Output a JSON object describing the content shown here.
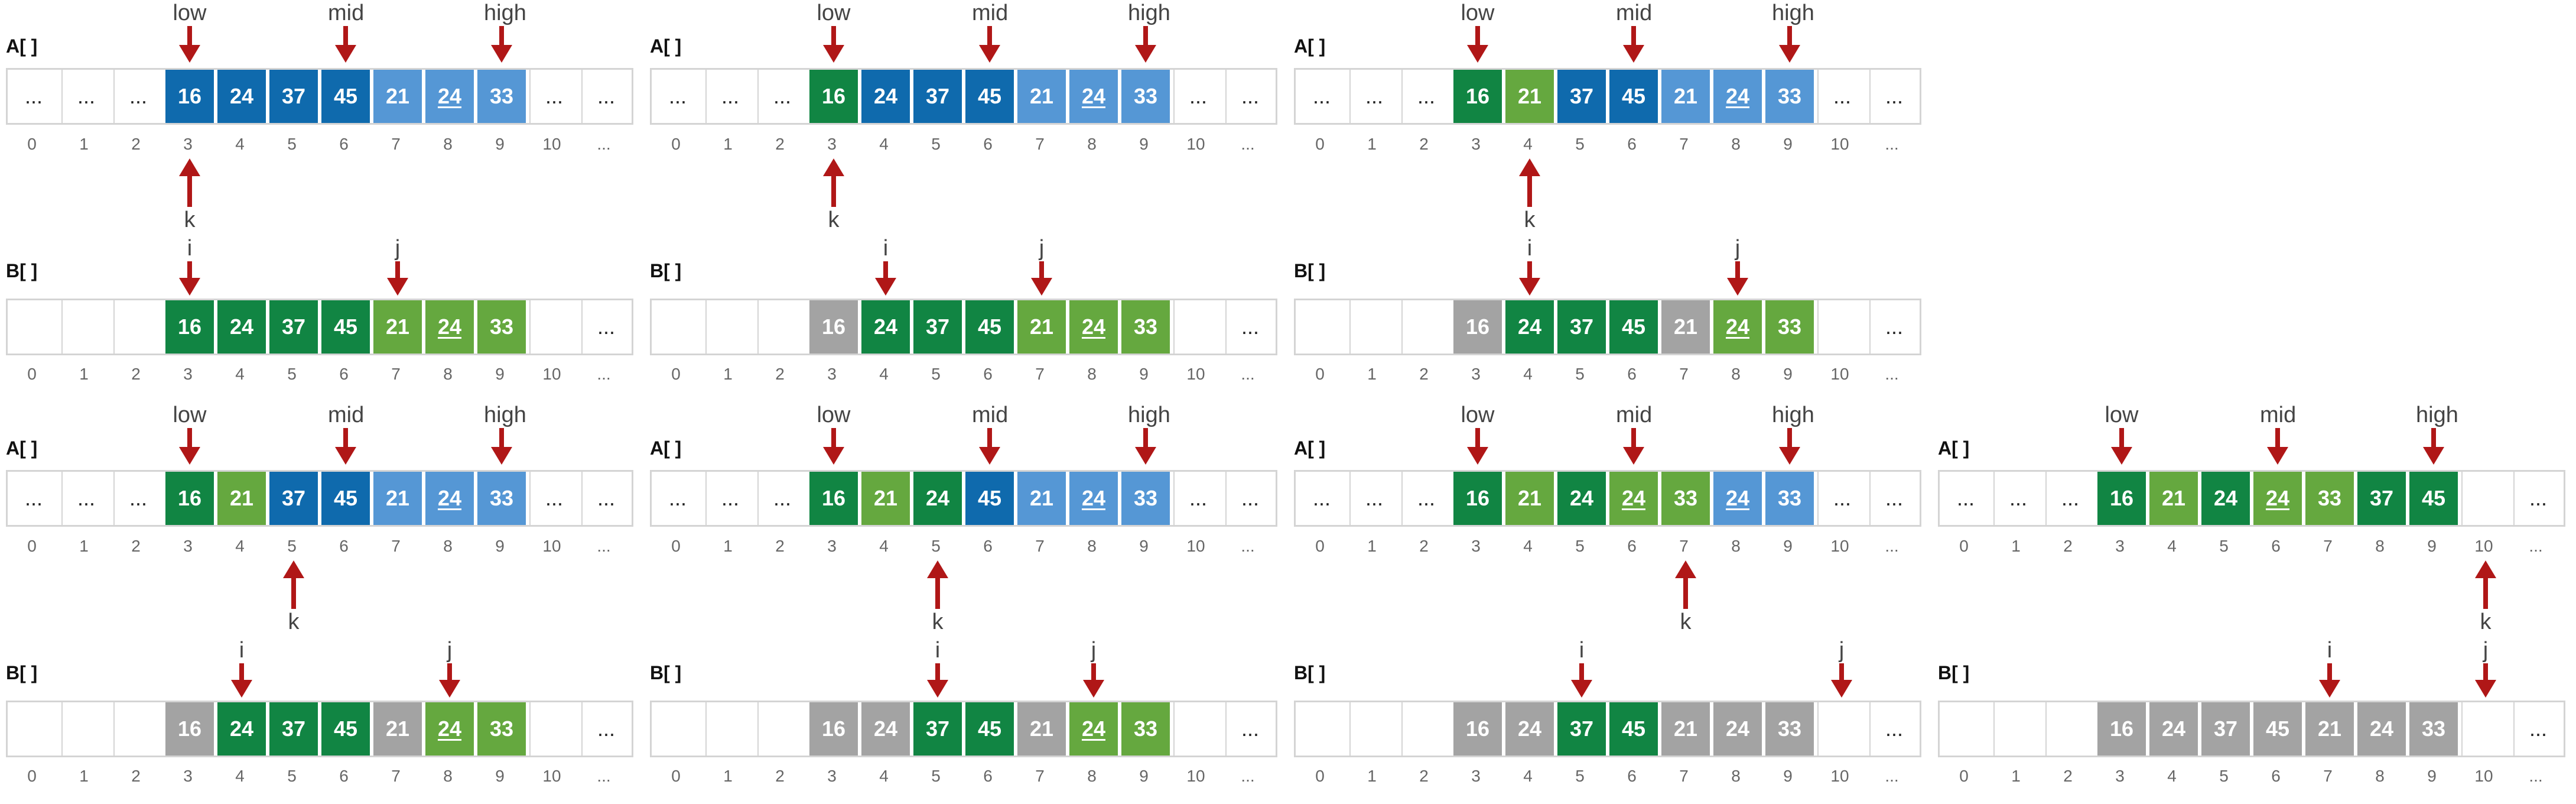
{
  "array_a_label": "A[ ]",
  "array_b_label": "B[ ]",
  "indices": [
    "0",
    "1",
    "2",
    "3",
    "4",
    "5",
    "6",
    "7",
    "8",
    "9",
    "10",
    "..."
  ],
  "panels": [
    {
      "a_cells": [
        {
          "v": "...",
          "c": "empty"
        },
        {
          "v": "...",
          "c": "empty"
        },
        {
          "v": "...",
          "c": "empty"
        },
        {
          "v": "16",
          "c": "dark"
        },
        {
          "v": "24",
          "c": "dark"
        },
        {
          "v": "37",
          "c": "dark"
        },
        {
          "v": "45",
          "c": "dark"
        },
        {
          "v": "21",
          "c": "light"
        },
        {
          "v": "24",
          "c": "light",
          "u": true
        },
        {
          "v": "33",
          "c": "light"
        },
        {
          "v": "...",
          "c": "empty"
        },
        {
          "v": "...",
          "c": "empty"
        }
      ],
      "b_cells": [
        {
          "v": "",
          "c": "empty"
        },
        {
          "v": "",
          "c": "empty"
        },
        {
          "v": "",
          "c": "empty"
        },
        {
          "v": "16",
          "c": "dgreen"
        },
        {
          "v": "24",
          "c": "dgreen"
        },
        {
          "v": "37",
          "c": "dgreen"
        },
        {
          "v": "45",
          "c": "dgreen"
        },
        {
          "v": "21",
          "c": "lgreen"
        },
        {
          "v": "24",
          "c": "lgreen",
          "u": true
        },
        {
          "v": "33",
          "c": "lgreen"
        },
        {
          "v": "",
          "c": "empty"
        },
        {
          "v": "...",
          "c": "empty"
        }
      ],
      "a_pointers": [
        {
          "label": "low",
          "index": 3
        },
        {
          "label": "mid",
          "index": 6
        },
        {
          "label": "high",
          "index": 9
        }
      ],
      "k_pointer": {
        "label": "k",
        "index": 3
      },
      "b_pointers": [
        {
          "label": "i",
          "index": 3
        },
        {
          "label": "j",
          "index": 7
        }
      ]
    },
    {
      "a_cells": [
        {
          "v": "...",
          "c": "empty"
        },
        {
          "v": "...",
          "c": "empty"
        },
        {
          "v": "...",
          "c": "empty"
        },
        {
          "v": "16",
          "c": "dgreen"
        },
        {
          "v": "24",
          "c": "dark"
        },
        {
          "v": "37",
          "c": "dark"
        },
        {
          "v": "45",
          "c": "dark"
        },
        {
          "v": "21",
          "c": "light"
        },
        {
          "v": "24",
          "c": "light",
          "u": true
        },
        {
          "v": "33",
          "c": "light"
        },
        {
          "v": "...",
          "c": "empty"
        },
        {
          "v": "...",
          "c": "empty"
        }
      ],
      "b_cells": [
        {
          "v": "",
          "c": "empty"
        },
        {
          "v": "",
          "c": "empty"
        },
        {
          "v": "",
          "c": "empty"
        },
        {
          "v": "16",
          "c": "gray"
        },
        {
          "v": "24",
          "c": "dgreen"
        },
        {
          "v": "37",
          "c": "dgreen"
        },
        {
          "v": "45",
          "c": "dgreen"
        },
        {
          "v": "21",
          "c": "lgreen"
        },
        {
          "v": "24",
          "c": "lgreen",
          "u": true
        },
        {
          "v": "33",
          "c": "lgreen"
        },
        {
          "v": "",
          "c": "empty"
        },
        {
          "v": "...",
          "c": "empty"
        }
      ],
      "a_pointers": [
        {
          "label": "low",
          "index": 3
        },
        {
          "label": "mid",
          "index": 6
        },
        {
          "label": "high",
          "index": 9
        }
      ],
      "k_pointer": {
        "label": "k",
        "index": 3
      },
      "b_pointers": [
        {
          "label": "i",
          "index": 4
        },
        {
          "label": "j",
          "index": 7
        }
      ]
    },
    {
      "a_cells": [
        {
          "v": "...",
          "c": "empty"
        },
        {
          "v": "...",
          "c": "empty"
        },
        {
          "v": "...",
          "c": "empty"
        },
        {
          "v": "16",
          "c": "dgreen"
        },
        {
          "v": "21",
          "c": "lgreen"
        },
        {
          "v": "37",
          "c": "dark"
        },
        {
          "v": "45",
          "c": "dark"
        },
        {
          "v": "21",
          "c": "light"
        },
        {
          "v": "24",
          "c": "light",
          "u": true
        },
        {
          "v": "33",
          "c": "light"
        },
        {
          "v": "...",
          "c": "empty"
        },
        {
          "v": "...",
          "c": "empty"
        }
      ],
      "b_cells": [
        {
          "v": "",
          "c": "empty"
        },
        {
          "v": "",
          "c": "empty"
        },
        {
          "v": "",
          "c": "empty"
        },
        {
          "v": "16",
          "c": "gray"
        },
        {
          "v": "24",
          "c": "dgreen"
        },
        {
          "v": "37",
          "c": "dgreen"
        },
        {
          "v": "45",
          "c": "dgreen"
        },
        {
          "v": "21",
          "c": "gray"
        },
        {
          "v": "24",
          "c": "lgreen",
          "u": true
        },
        {
          "v": "33",
          "c": "lgreen"
        },
        {
          "v": "",
          "c": "empty"
        },
        {
          "v": "...",
          "c": "empty"
        }
      ],
      "a_pointers": [
        {
          "label": "low",
          "index": 3
        },
        {
          "label": "mid",
          "index": 6
        },
        {
          "label": "high",
          "index": 9
        }
      ],
      "k_pointer": {
        "label": "k",
        "index": 4
      },
      "b_pointers": [
        {
          "label": "i",
          "index": 4
        },
        {
          "label": "j",
          "index": 8
        }
      ]
    },
    null,
    {
      "a_cells": [
        {
          "v": "...",
          "c": "empty"
        },
        {
          "v": "...",
          "c": "empty"
        },
        {
          "v": "...",
          "c": "empty"
        },
        {
          "v": "16",
          "c": "dgreen"
        },
        {
          "v": "21",
          "c": "lgreen"
        },
        {
          "v": "37",
          "c": "dark"
        },
        {
          "v": "45",
          "c": "dark"
        },
        {
          "v": "21",
          "c": "light"
        },
        {
          "v": "24",
          "c": "light",
          "u": true
        },
        {
          "v": "33",
          "c": "light"
        },
        {
          "v": "...",
          "c": "empty"
        },
        {
          "v": "...",
          "c": "empty"
        }
      ],
      "b_cells": [
        {
          "v": "",
          "c": "empty"
        },
        {
          "v": "",
          "c": "empty"
        },
        {
          "v": "",
          "c": "empty"
        },
        {
          "v": "16",
          "c": "gray"
        },
        {
          "v": "24",
          "c": "dgreen"
        },
        {
          "v": "37",
          "c": "dgreen"
        },
        {
          "v": "45",
          "c": "dgreen"
        },
        {
          "v": "21",
          "c": "gray"
        },
        {
          "v": "24",
          "c": "lgreen",
          "u": true
        },
        {
          "v": "33",
          "c": "lgreen"
        },
        {
          "v": "",
          "c": "empty"
        },
        {
          "v": "...",
          "c": "empty"
        }
      ],
      "a_pointers": [
        {
          "label": "low",
          "index": 3
        },
        {
          "label": "mid",
          "index": 6
        },
        {
          "label": "high",
          "index": 9
        }
      ],
      "k_pointer": {
        "label": "k",
        "index": 5
      },
      "b_pointers": [
        {
          "label": "i",
          "index": 4
        },
        {
          "label": "j",
          "index": 8
        }
      ]
    },
    {
      "a_cells": [
        {
          "v": "...",
          "c": "empty"
        },
        {
          "v": "...",
          "c": "empty"
        },
        {
          "v": "...",
          "c": "empty"
        },
        {
          "v": "16",
          "c": "dgreen"
        },
        {
          "v": "21",
          "c": "lgreen"
        },
        {
          "v": "24",
          "c": "dgreen"
        },
        {
          "v": "45",
          "c": "dark"
        },
        {
          "v": "21",
          "c": "light"
        },
        {
          "v": "24",
          "c": "light",
          "u": true
        },
        {
          "v": "33",
          "c": "light"
        },
        {
          "v": "...",
          "c": "empty"
        },
        {
          "v": "...",
          "c": "empty"
        }
      ],
      "b_cells": [
        {
          "v": "",
          "c": "empty"
        },
        {
          "v": "",
          "c": "empty"
        },
        {
          "v": "",
          "c": "empty"
        },
        {
          "v": "16",
          "c": "gray"
        },
        {
          "v": "24",
          "c": "gray"
        },
        {
          "v": "37",
          "c": "dgreen"
        },
        {
          "v": "45",
          "c": "dgreen"
        },
        {
          "v": "21",
          "c": "gray"
        },
        {
          "v": "24",
          "c": "lgreen",
          "u": true
        },
        {
          "v": "33",
          "c": "lgreen"
        },
        {
          "v": "",
          "c": "empty"
        },
        {
          "v": "...",
          "c": "empty"
        }
      ],
      "a_pointers": [
        {
          "label": "low",
          "index": 3
        },
        {
          "label": "mid",
          "index": 6
        },
        {
          "label": "high",
          "index": 9
        }
      ],
      "k_pointer": {
        "label": "k",
        "index": 5
      },
      "b_pointers": [
        {
          "label": "i",
          "index": 5
        },
        {
          "label": "j",
          "index": 8
        }
      ]
    },
    {
      "a_cells": [
        {
          "v": "...",
          "c": "empty"
        },
        {
          "v": "...",
          "c": "empty"
        },
        {
          "v": "...",
          "c": "empty"
        },
        {
          "v": "16",
          "c": "dgreen"
        },
        {
          "v": "21",
          "c": "lgreen"
        },
        {
          "v": "24",
          "c": "dgreen"
        },
        {
          "v": "24",
          "c": "lgreen",
          "u": true
        },
        {
          "v": "33",
          "c": "lgreen"
        },
        {
          "v": "24",
          "c": "light",
          "u": true
        },
        {
          "v": "33",
          "c": "light"
        },
        {
          "v": "...",
          "c": "empty"
        },
        {
          "v": "...",
          "c": "empty"
        }
      ],
      "b_cells": [
        {
          "v": "",
          "c": "empty"
        },
        {
          "v": "",
          "c": "empty"
        },
        {
          "v": "",
          "c": "empty"
        },
        {
          "v": "16",
          "c": "gray"
        },
        {
          "v": "24",
          "c": "gray"
        },
        {
          "v": "37",
          "c": "dgreen"
        },
        {
          "v": "45",
          "c": "dgreen"
        },
        {
          "v": "21",
          "c": "gray"
        },
        {
          "v": "24",
          "c": "gray"
        },
        {
          "v": "33",
          "c": "gray"
        },
        {
          "v": "",
          "c": "empty"
        },
        {
          "v": "...",
          "c": "empty"
        }
      ],
      "a_pointers": [
        {
          "label": "low",
          "index": 3
        },
        {
          "label": "mid",
          "index": 6
        },
        {
          "label": "high",
          "index": 9
        }
      ],
      "k_pointer": {
        "label": "k",
        "index": 7
      },
      "b_pointers": [
        {
          "label": "i",
          "index": 5
        },
        {
          "label": "j",
          "index": 10
        }
      ]
    },
    {
      "a_cells": [
        {
          "v": "...",
          "c": "empty"
        },
        {
          "v": "...",
          "c": "empty"
        },
        {
          "v": "...",
          "c": "empty"
        },
        {
          "v": "16",
          "c": "dgreen"
        },
        {
          "v": "21",
          "c": "lgreen"
        },
        {
          "v": "24",
          "c": "dgreen"
        },
        {
          "v": "24",
          "c": "lgreen",
          "u": true
        },
        {
          "v": "33",
          "c": "lgreen"
        },
        {
          "v": "37",
          "c": "dgreen"
        },
        {
          "v": "45",
          "c": "dgreen"
        },
        {
          "v": "",
          "c": "empty"
        },
        {
          "v": "...",
          "c": "empty"
        }
      ],
      "b_cells": [
        {
          "v": "",
          "c": "empty"
        },
        {
          "v": "",
          "c": "empty"
        },
        {
          "v": "",
          "c": "empty"
        },
        {
          "v": "16",
          "c": "gray"
        },
        {
          "v": "24",
          "c": "gray"
        },
        {
          "v": "37",
          "c": "gray"
        },
        {
          "v": "45",
          "c": "gray"
        },
        {
          "v": "21",
          "c": "gray"
        },
        {
          "v": "24",
          "c": "gray"
        },
        {
          "v": "33",
          "c": "gray"
        },
        {
          "v": "",
          "c": "empty"
        },
        {
          "v": "...",
          "c": "empty"
        }
      ],
      "a_pointers": [
        {
          "label": "low",
          "index": 3
        },
        {
          "label": "mid",
          "index": 6
        },
        {
          "label": "high",
          "index": 9
        }
      ],
      "k_pointer": {
        "label": "k",
        "index": 10
      },
      "b_pointers": [
        {
          "label": "i",
          "index": 7
        },
        {
          "label": "j",
          "index": 10
        }
      ]
    }
  ]
}
